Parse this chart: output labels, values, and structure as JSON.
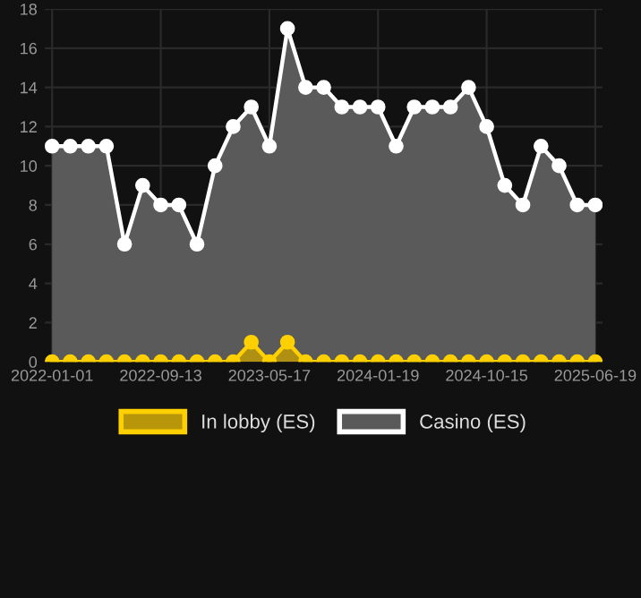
{
  "chart_data": {
    "type": "area",
    "categories": [
      "2022-01-01",
      null,
      null,
      null,
      null,
      null,
      "2022-09-13",
      null,
      null,
      null,
      null,
      null,
      "2023-05-17",
      null,
      null,
      null,
      null,
      null,
      "2024-01-19",
      null,
      null,
      null,
      null,
      null,
      "2024-10-15",
      null,
      null,
      null,
      null,
      null,
      "2025-06-19"
    ],
    "series": [
      {
        "name": "In lobby (ES)",
        "color": "#ffd000",
        "values": [
          0,
          0,
          0,
          0,
          0,
          0,
          0,
          0,
          0,
          0,
          0,
          1,
          0,
          1,
          0,
          0,
          0,
          0,
          0,
          0,
          0,
          0,
          0,
          0,
          0,
          0,
          0,
          0,
          0,
          0,
          0
        ]
      },
      {
        "name": "Casino (ES)",
        "color": "#ffffff",
        "values": [
          11,
          11,
          11,
          11,
          6,
          9,
          8,
          8,
          6,
          10,
          12,
          13,
          11,
          17,
          14,
          14,
          13,
          13,
          13,
          11,
          13,
          13,
          13,
          14,
          12,
          9,
          8,
          11,
          10,
          8,
          8
        ]
      }
    ],
    "ylim": [
      0,
      18
    ],
    "yticks": [
      0,
      2,
      4,
      6,
      8,
      10,
      12,
      14,
      16,
      18
    ],
    "grid": true,
    "legend": "bottom",
    "marker": "circle",
    "line_style": "solid"
  }
}
